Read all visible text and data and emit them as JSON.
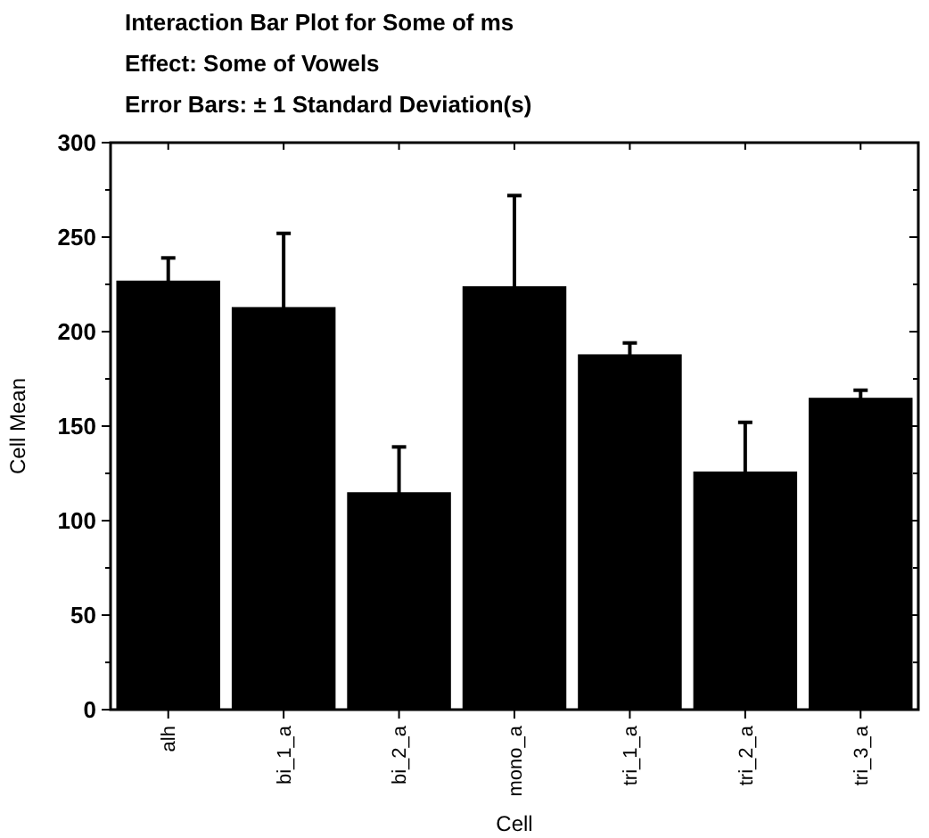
{
  "chart_data": {
    "type": "bar",
    "title": "Interaction Bar Plot for Some of ms",
    "subtitle": "Effect: Some of Vowels",
    "annotations": [
      "Error Bars: ± 1 Standard Deviation(s)"
    ],
    "xlabel": "Cell",
    "ylabel": "Cell Mean",
    "categories": [
      "alh",
      "bi_1_a",
      "bi_2_a",
      "mono_a",
      "tri_1_a",
      "tri_2_a",
      "tri_3_a"
    ],
    "values": [
      227,
      213,
      115,
      224,
      188,
      126,
      165
    ],
    "errors": [
      12,
      39,
      24,
      48,
      6,
      26,
      4
    ],
    "color": "#000000",
    "ylim": [
      0,
      300
    ],
    "yticks": [
      0,
      {
        "value": 25,
        "label": null
      },
      50,
      {
        "value": 75,
        "label": null
      },
      100,
      {
        "value": 125,
        "label": null
      },
      150,
      {
        "value": 175,
        "label": null
      },
      200,
      {
        "value": 225,
        "label": null
      },
      250,
      {
        "value": 275,
        "label": null
      },
      300
    ]
  }
}
